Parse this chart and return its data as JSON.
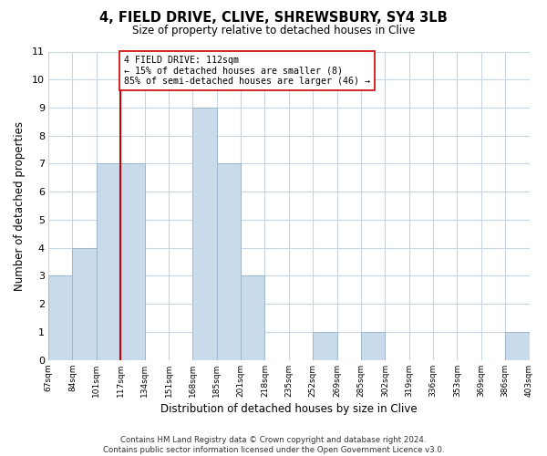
{
  "title": "4, FIELD DRIVE, CLIVE, SHREWSBURY, SY4 3LB",
  "subtitle": "Size of property relative to detached houses in Clive",
  "xlabel": "Distribution of detached houses by size in Clive",
  "ylabel": "Number of detached properties",
  "footer_line1": "Contains HM Land Registry data © Crown copyright and database right 2024.",
  "footer_line2": "Contains public sector information licensed under the Open Government Licence v3.0.",
  "bin_labels": [
    "67sqm",
    "84sqm",
    "101sqm",
    "117sqm",
    "134sqm",
    "151sqm",
    "168sqm",
    "185sqm",
    "201sqm",
    "218sqm",
    "235sqm",
    "252sqm",
    "269sqm",
    "285sqm",
    "302sqm",
    "319sqm",
    "336sqm",
    "353sqm",
    "369sqm",
    "386sqm",
    "403sqm"
  ],
  "counts": [
    3,
    4,
    7,
    7,
    0,
    0,
    9,
    7,
    3,
    0,
    0,
    1,
    0,
    1,
    0,
    0,
    0,
    0,
    0,
    1
  ],
  "bar_color": "#c9daea",
  "bar_edge_color": "#a0b8cc",
  "subject_line_tick_index": 3,
  "subject_line_color": "#cc0000",
  "annotation_text": "4 FIELD DRIVE: 112sqm\n← 15% of detached houses are smaller (8)\n85% of semi-detached houses are larger (46) →",
  "annotation_box_edge_color": "#cc0000",
  "annotation_box_face_color": "#ffffff",
  "ylim": [
    0,
    11
  ],
  "yticks": [
    0,
    1,
    2,
    3,
    4,
    5,
    6,
    7,
    8,
    9,
    10,
    11
  ],
  "grid_color": "#c8d4e0",
  "background_color": "#ffffff"
}
